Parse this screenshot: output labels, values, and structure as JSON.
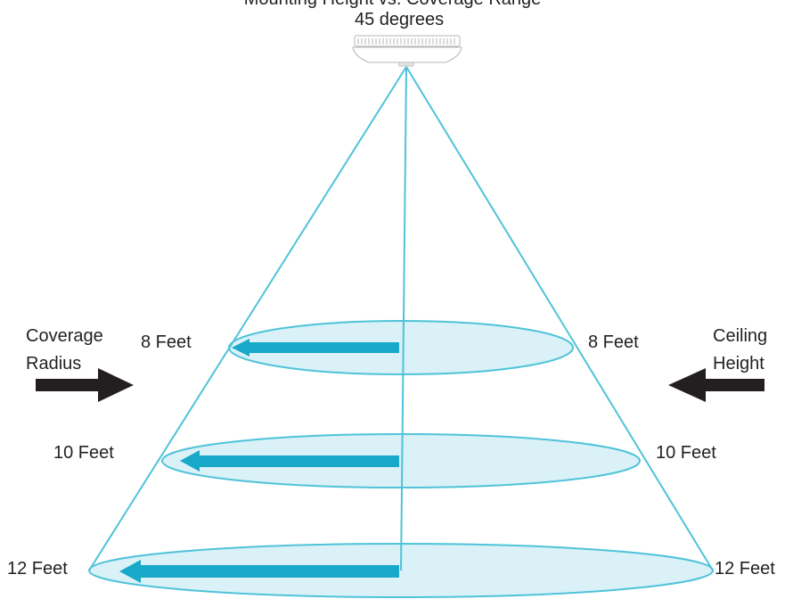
{
  "title": "Mounting Height vs. Coverage Range",
  "angle_label": "45 degrees",
  "left_caption": [
    "Coverage",
    "Radius"
  ],
  "right_caption": [
    "Ceiling",
    "Height"
  ],
  "levels": [
    {
      "label": "8 Feet"
    },
    {
      "label": "10 Feet"
    },
    {
      "label": "12 Feet"
    }
  ],
  "colors": {
    "cone_line": "#4fc3d9",
    "disc_fill": "#d9f1f7",
    "arrow": "#17a9c7",
    "text": "#231f20",
    "side_arrow": "#231f20"
  }
}
